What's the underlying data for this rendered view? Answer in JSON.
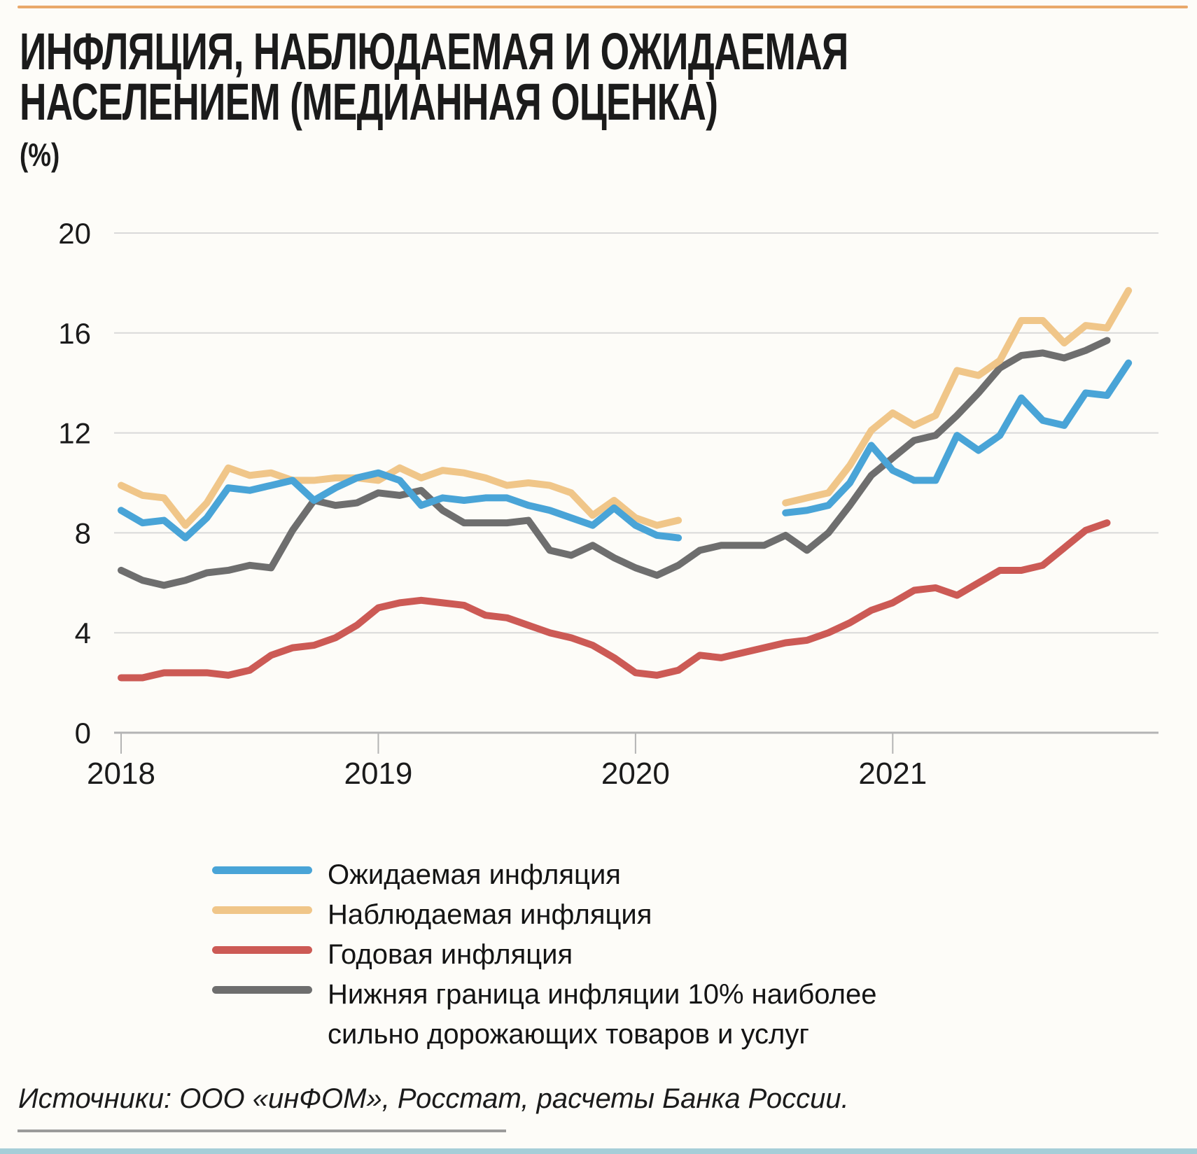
{
  "header": {
    "title_line1": "ИНФЛЯЦИЯ, НАБЛЮДАЕМАЯ И ОЖИДАЕМАЯ",
    "title_line2": "НАСЕЛЕНИЕМ (МЕДИАННАЯ ОЦЕНКА)",
    "unit": "(%)"
  },
  "footer": {
    "source": "Источники: ООО «инФОМ», Росстат, расчеты Банка России."
  },
  "colors": {
    "accent_rule": "#e9a86a",
    "grid": "#d9d9d9",
    "axis": "#b4b4b4",
    "tick_text": "#1b1b1b",
    "bottom_bar": "#a6ced8"
  },
  "chart_data": {
    "type": "line",
    "title": "Инфляция, наблюдаемая и ожидаемая населением (медианная оценка)",
    "ylabel": "%",
    "ylim": [
      0,
      20
    ],
    "y_ticks": [
      0,
      4,
      8,
      12,
      16,
      20
    ],
    "x_tick_labels": [
      "2018",
      "2019",
      "2020",
      "2021"
    ],
    "grid": true,
    "legend_position": "bottom-left",
    "x_monthly": [
      "2018-01",
      "2018-02",
      "2018-03",
      "2018-04",
      "2018-05",
      "2018-06",
      "2018-07",
      "2018-08",
      "2018-09",
      "2018-10",
      "2018-11",
      "2018-12",
      "2019-01",
      "2019-02",
      "2019-03",
      "2019-04",
      "2019-05",
      "2019-06",
      "2019-07",
      "2019-08",
      "2019-09",
      "2019-10",
      "2019-11",
      "2019-12",
      "2020-01",
      "2020-02",
      "2020-03",
      "2020-04",
      "2020-05",
      "2020-06",
      "2020-07",
      "2020-08",
      "2020-09",
      "2020-10",
      "2020-11",
      "2020-12",
      "2021-01",
      "2021-02",
      "2021-03",
      "2021-04",
      "2021-05",
      "2021-06",
      "2021-07",
      "2021-08",
      "2021-09",
      "2021-10",
      "2021-11",
      "2021-12"
    ],
    "series": [
      {
        "name": "Ожидаемая инфляция",
        "color": "#49a4d7",
        "values": [
          8.9,
          8.4,
          8.5,
          7.8,
          8.6,
          9.8,
          9.7,
          9.9,
          10.1,
          9.3,
          9.8,
          10.2,
          10.4,
          10.1,
          9.1,
          9.4,
          9.3,
          9.4,
          9.4,
          9.1,
          8.9,
          8.6,
          8.3,
          9.0,
          8.3,
          7.9,
          7.8,
          null,
          null,
          null,
          null,
          8.8,
          8.9,
          9.1,
          10.0,
          11.5,
          10.5,
          10.1,
          10.1,
          11.9,
          11.3,
          11.9,
          13.4,
          12.5,
          12.3,
          13.6,
          13.5,
          14.8
        ]
      },
      {
        "name": "Наблюдаемая  инфляция",
        "color": "#f0c689",
        "values": [
          9.9,
          9.5,
          9.4,
          8.3,
          9.2,
          10.6,
          10.3,
          10.4,
          10.1,
          10.1,
          10.2,
          10.2,
          10.1,
          10.6,
          10.2,
          10.5,
          10.4,
          10.2,
          9.9,
          10.0,
          9.9,
          9.6,
          8.7,
          9.3,
          8.6,
          8.3,
          8.5,
          null,
          null,
          null,
          null,
          9.2,
          9.4,
          9.6,
          10.7,
          12.1,
          12.8,
          12.3,
          12.7,
          14.5,
          14.3,
          14.9,
          16.5,
          16.5,
          15.6,
          16.3,
          16.2,
          17.7
        ]
      },
      {
        "name": "Годовая инфляция",
        "color": "#cc5a55",
        "values": [
          2.2,
          2.2,
          2.4,
          2.4,
          2.4,
          2.3,
          2.5,
          3.1,
          3.4,
          3.5,
          3.8,
          4.3,
          5.0,
          5.2,
          5.3,
          5.2,
          5.1,
          4.7,
          4.6,
          4.3,
          4.0,
          3.8,
          3.5,
          3.0,
          2.4,
          2.3,
          2.5,
          3.1,
          3.0,
          3.2,
          3.4,
          3.6,
          3.7,
          4.0,
          4.4,
          4.9,
          5.2,
          5.7,
          5.8,
          5.5,
          6.0,
          6.5,
          6.5,
          6.7,
          7.4,
          8.1,
          8.4,
          null
        ]
      },
      {
        "name": "Нижняя граница инфляции 10% наиболее сильно дорожающих товаров и услуг",
        "color": "#6e6e6e",
        "values": [
          6.5,
          6.1,
          5.9,
          6.1,
          6.4,
          6.5,
          6.7,
          6.6,
          8.1,
          9.3,
          9.1,
          9.2,
          9.6,
          9.5,
          9.7,
          8.9,
          8.4,
          8.4,
          8.4,
          8.5,
          7.3,
          7.1,
          7.5,
          7.0,
          6.6,
          6.3,
          6.7,
          7.3,
          7.5,
          7.5,
          7.5,
          7.9,
          7.3,
          8.0,
          9.1,
          10.3,
          11.0,
          11.7,
          11.9,
          12.7,
          13.6,
          14.6,
          15.1,
          15.2,
          15.0,
          15.3,
          15.7,
          null
        ]
      }
    ]
  }
}
